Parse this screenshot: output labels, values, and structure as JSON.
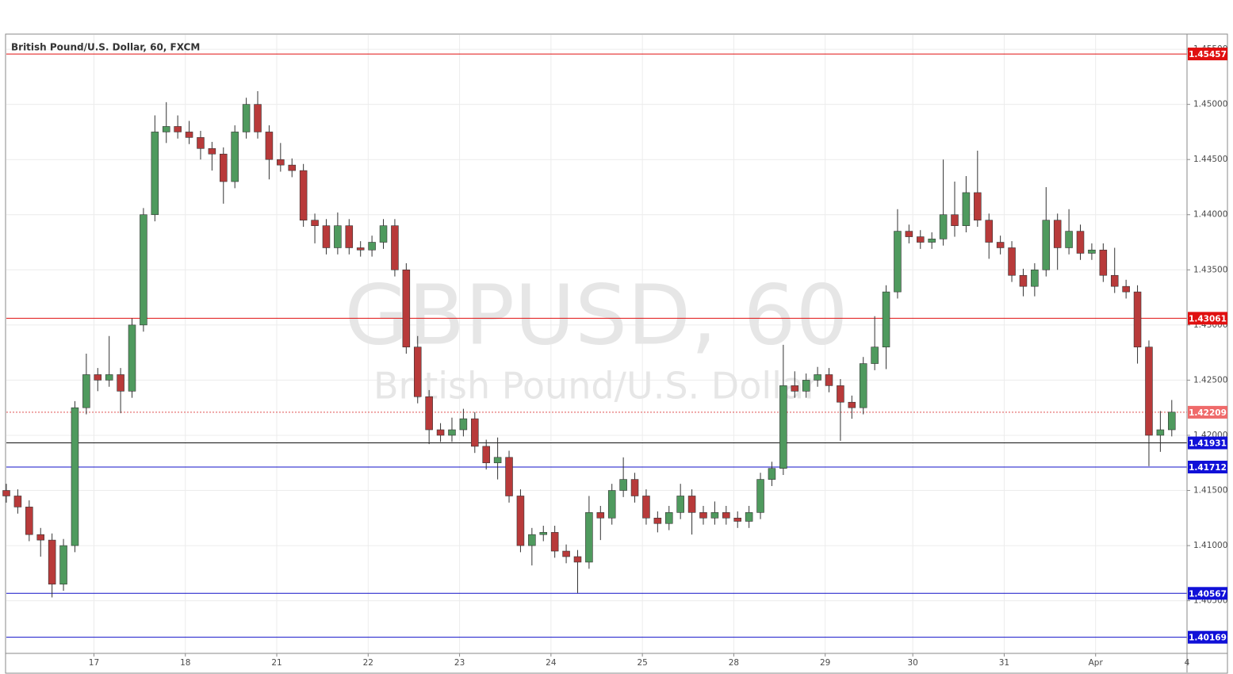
{
  "chart_data": {
    "type": "candlestick",
    "title": "British Pound/U.S. Dollar, 60, FXCM",
    "watermark": "GBPUSD, 60",
    "watermark_subtitle": "British Pound/U.S. Dollar",
    "up_color": "#4f9a5e",
    "down_color": "#b83a3a",
    "grid": true,
    "xlim": [
      0,
      310
    ],
    "ylim": [
      1.4003,
      1.4563
    ],
    "xticks": [
      {
        "value": 23,
        "label": "17"
      },
      {
        "value": 47,
        "label": "18"
      },
      {
        "value": 71,
        "label": "21"
      },
      {
        "value": 95,
        "label": "22"
      },
      {
        "value": 119,
        "label": "23"
      },
      {
        "value": 143,
        "label": "24"
      },
      {
        "value": 167,
        "label": "25"
      },
      {
        "value": 191,
        "label": "28"
      },
      {
        "value": 215,
        "label": "29"
      },
      {
        "value": 238,
        "label": "30"
      },
      {
        "value": 262,
        "label": "31"
      },
      {
        "value": 286,
        "label": "Apr"
      },
      {
        "value": 310,
        "label": "4"
      }
    ],
    "yticks": [
      {
        "value": 1.405,
        "label": "1.40500"
      },
      {
        "value": 1.41,
        "label": "1.41000"
      },
      {
        "value": 1.415,
        "label": "1.41500"
      },
      {
        "value": 1.42,
        "label": "1.42000"
      },
      {
        "value": 1.425,
        "label": "1.42500"
      },
      {
        "value": 1.43,
        "label": "1.43000"
      },
      {
        "value": 1.435,
        "label": "1.43500"
      },
      {
        "value": 1.44,
        "label": "1.44000"
      },
      {
        "value": 1.445,
        "label": "1.44500"
      },
      {
        "value": 1.45,
        "label": "1.45000"
      },
      {
        "value": 1.455,
        "label": "1.45500"
      }
    ],
    "levels": [
      {
        "value": 1.45457,
        "line_color": "#e01010",
        "box_color": "#e01010",
        "dotted": false
      },
      {
        "value": 1.43061,
        "line_color": "#e01010",
        "box_color": "#e01010",
        "dotted": false
      },
      {
        "value": 1.42209,
        "line_color": "#e05050",
        "box_color": "#ef6a6a",
        "dotted": true
      },
      {
        "value": 1.41931,
        "line_color": "#111111",
        "box_color": "#1010d8",
        "dotted": false
      },
      {
        "value": 1.41712,
        "line_color": "#1010c8",
        "box_color": "#1010d8",
        "dotted": false
      },
      {
        "value": 1.40567,
        "line_color": "#1010c8",
        "box_color": "#1010d8",
        "dotted": false
      },
      {
        "value": 1.40169,
        "line_color": "#1010c8",
        "box_color": "#1010d8",
        "dotted": false
      }
    ],
    "x": [
      0,
      3,
      6,
      9,
      12,
      15,
      18,
      21,
      24,
      27,
      30,
      33,
      36,
      39,
      42,
      45,
      48,
      51,
      54,
      57,
      60,
      63,
      66,
      69,
      72,
      75,
      78,
      81,
      84,
      87,
      90,
      93,
      96,
      99,
      102,
      105,
      108,
      111,
      114,
      117,
      120,
      123,
      126,
      129,
      132,
      135,
      138,
      141,
      144,
      147,
      150,
      153,
      156,
      159,
      162,
      165,
      168,
      171,
      174,
      177,
      180,
      183,
      186,
      189,
      192,
      195,
      198,
      201,
      204,
      207,
      210,
      213,
      216,
      219,
      222,
      225,
      228,
      231,
      234,
      237,
      240,
      243,
      246,
      249,
      252,
      255,
      258,
      261,
      264,
      267,
      270,
      273,
      276,
      279,
      282,
      285,
      288,
      291,
      294,
      297,
      300,
      303,
      306
    ],
    "open": [
      1.415,
      1.4145,
      1.4135,
      1.411,
      1.4105,
      1.4065,
      1.41,
      1.4225,
      1.4255,
      1.425,
      1.4255,
      1.424,
      1.43,
      1.44,
      1.4475,
      1.448,
      1.4475,
      1.447,
      1.446,
      1.4455,
      1.443,
      1.4475,
      1.45,
      1.4475,
      1.445,
      1.4445,
      1.444,
      1.4395,
      1.439,
      1.437,
      1.439,
      1.437,
      1.4368,
      1.4375,
      1.439,
      1.435,
      1.428,
      1.4235,
      1.4205,
      1.42,
      1.4205,
      1.4215,
      1.419,
      1.4175,
      1.418,
      1.4145,
      1.41,
      1.411,
      1.4112,
      1.4095,
      1.409,
      1.4085,
      1.413,
      1.4125,
      1.415,
      1.416,
      1.4145,
      1.4125,
      1.412,
      1.413,
      1.4145,
      1.413,
      1.4125,
      1.413,
      1.4125,
      1.4122,
      1.413,
      1.416,
      1.417,
      1.4245,
      1.424,
      1.425,
      1.4255,
      1.4245,
      1.423,
      1.4225,
      1.4265,
      1.428,
      1.433,
      1.4385,
      1.438,
      1.4375,
      1.4378,
      1.44,
      1.439,
      1.442,
      1.4395,
      1.4375,
      1.437,
      1.4345,
      1.4335,
      1.435,
      1.4395,
      1.437,
      1.4385,
      1.4365,
      1.4368,
      1.4345,
      1.4335,
      1.433,
      1.428,
      1.42,
      1.4205
    ],
    "high": [
      1.4156,
      1.4151,
      1.4141,
      1.4116,
      1.4111,
      1.4106,
      1.4231,
      1.4274,
      1.4261,
      1.429,
      1.4261,
      1.4306,
      1.4406,
      1.449,
      1.4502,
      1.449,
      1.4485,
      1.4476,
      1.4466,
      1.4461,
      1.4481,
      1.4506,
      1.4512,
      1.4481,
      1.4465,
      1.4451,
      1.4446,
      1.4401,
      1.4396,
      1.4402,
      1.4396,
      1.4376,
      1.4381,
      1.4396,
      1.4396,
      1.4356,
      1.429,
      1.4241,
      1.4211,
      1.4216,
      1.4224,
      1.4221,
      1.4196,
      1.4198,
      1.4186,
      1.4151,
      1.4116,
      1.4118,
      1.4118,
      1.4101,
      1.4096,
      1.4145,
      1.4136,
      1.4156,
      1.418,
      1.4166,
      1.4151,
      1.4131,
      1.4136,
      1.4156,
      1.4151,
      1.4136,
      1.414,
      1.4136,
      1.4131,
      1.4136,
      1.4166,
      1.4176,
      1.4282,
      1.4258,
      1.4256,
      1.4262,
      1.4261,
      1.4251,
      1.4236,
      1.4271,
      1.4308,
      1.4336,
      1.4405,
      1.4391,
      1.4386,
      1.4384,
      1.445,
      1.443,
      1.4435,
      1.4458,
      1.4401,
      1.4381,
      1.4376,
      1.4351,
      1.4356,
      1.4425,
      1.4401,
      1.4405,
      1.4391,
      1.4374,
      1.4374,
      1.437,
      1.4341,
      1.4336,
      1.4286,
      1.4222,
      1.4232
    ],
    "low": [
      1.4139,
      1.4129,
      1.4104,
      1.409,
      1.4053,
      1.4059,
      1.4094,
      1.4219,
      1.424,
      1.4244,
      1.422,
      1.4234,
      1.4294,
      1.4394,
      1.4465,
      1.4469,
      1.4464,
      1.445,
      1.444,
      1.441,
      1.4424,
      1.4469,
      1.4469,
      1.4432,
      1.4439,
      1.4434,
      1.4389,
      1.4374,
      1.4364,
      1.4364,
      1.4364,
      1.4362,
      1.4362,
      1.4369,
      1.4344,
      1.4274,
      1.4229,
      1.4192,
      1.4194,
      1.4194,
      1.4199,
      1.4184,
      1.4169,
      1.416,
      1.4139,
      1.4094,
      1.4082,
      1.4104,
      1.4089,
      1.4084,
      1.4057,
      1.4079,
      1.4105,
      1.4119,
      1.4144,
      1.4139,
      1.4119,
      1.4112,
      1.4114,
      1.4124,
      1.411,
      1.4119,
      1.4119,
      1.4119,
      1.4116,
      1.4116,
      1.4124,
      1.4154,
      1.4164,
      1.4234,
      1.4234,
      1.4244,
      1.4239,
      1.4195,
      1.4215,
      1.4219,
      1.4259,
      1.426,
      1.4324,
      1.4374,
      1.4369,
      1.4369,
      1.4372,
      1.438,
      1.4384,
      1.4389,
      1.436,
      1.4364,
      1.4339,
      1.4326,
      1.4326,
      1.4344,
      1.435,
      1.4364,
      1.4359,
      1.4359,
      1.4339,
      1.4329,
      1.4324,
      1.4265,
      1.4172,
      1.4185,
      1.4199
    ],
    "close": [
      1.4145,
      1.4135,
      1.411,
      1.4105,
      1.4065,
      1.41,
      1.4225,
      1.4255,
      1.425,
      1.4255,
      1.424,
      1.43,
      1.44,
      1.4475,
      1.448,
      1.4475,
      1.447,
      1.446,
      1.4455,
      1.443,
      1.4475,
      1.45,
      1.4475,
      1.445,
      1.4445,
      1.444,
      1.4395,
      1.439,
      1.437,
      1.439,
      1.437,
      1.4368,
      1.4375,
      1.439,
      1.435,
      1.428,
      1.4235,
      1.4205,
      1.42,
      1.4205,
      1.4215,
      1.419,
      1.4175,
      1.418,
      1.4145,
      1.41,
      1.411,
      1.4112,
      1.4095,
      1.409,
      1.4085,
      1.413,
      1.4125,
      1.415,
      1.416,
      1.4145,
      1.4125,
      1.412,
      1.413,
      1.4145,
      1.413,
      1.4125,
      1.413,
      1.4125,
      1.4122,
      1.413,
      1.416,
      1.417,
      1.4245,
      1.424,
      1.425,
      1.4255,
      1.4245,
      1.423,
      1.4225,
      1.4265,
      1.428,
      1.433,
      1.4385,
      1.438,
      1.4375,
      1.4378,
      1.44,
      1.439,
      1.442,
      1.4395,
      1.4375,
      1.437,
      1.4345,
      1.4335,
      1.435,
      1.4395,
      1.437,
      1.4385,
      1.4365,
      1.4368,
      1.4345,
      1.4335,
      1.433,
      1.428,
      1.42,
      1.4205,
      1.4221
    ]
  }
}
